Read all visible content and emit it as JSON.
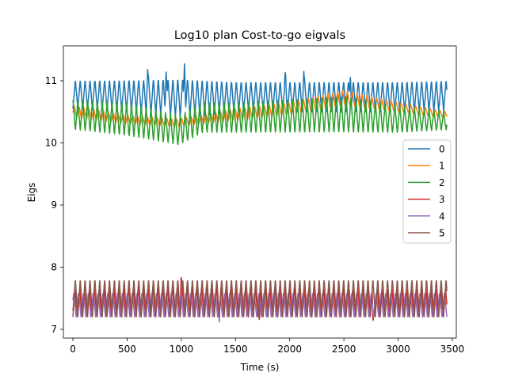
{
  "chart_data": {
    "type": "line",
    "title": "Log10 plan Cost-to-go eigvals",
    "xlabel": "Time (s)",
    "ylabel": "Eigs",
    "xlim": [
      -88,
      3537
    ],
    "ylim": [
      6.86,
      11.56
    ],
    "xticks": [
      0,
      500,
      1000,
      1500,
      2000,
      2500,
      3000,
      3500
    ],
    "yticks": [
      7,
      8,
      9,
      10,
      11
    ],
    "grid": false,
    "legend_position": "center-right",
    "series": [
      {
        "name": "0",
        "color": "#1f77b4",
        "lo": [
          [
            0,
            10.55
          ],
          [
            500,
            10.5
          ],
          [
            1000,
            10.4
          ],
          [
            1500,
            10.5
          ],
          [
            2000,
            10.5
          ],
          [
            2500,
            10.5
          ],
          [
            3000,
            10.5
          ],
          [
            3450,
            10.5
          ]
        ],
        "hi": [
          [
            0,
            11.02
          ],
          [
            500,
            11.03
          ],
          [
            1000,
            11.05
          ],
          [
            1500,
            11.0
          ],
          [
            2000,
            11.0
          ],
          [
            2500,
            11.0
          ],
          [
            3000,
            11.0
          ],
          [
            3450,
            11.02
          ]
        ],
        "period": 45,
        "phase": 0,
        "spikes": [
          [
            1030,
            11.35
          ],
          [
            860,
            11.2
          ],
          [
            690,
            11.18
          ],
          [
            1960,
            11.15
          ],
          [
            2130,
            11.15
          ],
          [
            2560,
            11.1
          ]
        ]
      },
      {
        "name": "1",
        "color": "#ff7f0e",
        "lo": [
          [
            0,
            10.4
          ],
          [
            500,
            10.3
          ],
          [
            950,
            10.25
          ],
          [
            1200,
            10.3
          ],
          [
            1500,
            10.35
          ],
          [
            2000,
            10.45
          ],
          [
            2500,
            10.6
          ],
          [
            3000,
            10.5
          ],
          [
            3450,
            10.4
          ]
        ],
        "hi": [
          [
            0,
            10.6
          ],
          [
            500,
            10.45
          ],
          [
            950,
            10.38
          ],
          [
            1200,
            10.45
          ],
          [
            1500,
            10.55
          ],
          [
            2000,
            10.65
          ],
          [
            2500,
            10.85
          ],
          [
            3000,
            10.65
          ],
          [
            3450,
            10.5
          ]
        ],
        "period": 45,
        "phase": 10,
        "spikes": []
      },
      {
        "name": "2",
        "color": "#2ca02c",
        "lo": [
          [
            0,
            10.2
          ],
          [
            500,
            10.1
          ],
          [
            980,
            9.95
          ],
          [
            1200,
            10.15
          ],
          [
            1500,
            10.15
          ],
          [
            2000,
            10.15
          ],
          [
            2500,
            10.15
          ],
          [
            3000,
            10.15
          ],
          [
            3450,
            10.2
          ]
        ],
        "hi": [
          [
            0,
            10.7
          ],
          [
            500,
            10.65
          ],
          [
            980,
            10.45
          ],
          [
            1200,
            10.65
          ],
          [
            1500,
            10.65
          ],
          [
            2000,
            10.7
          ],
          [
            2500,
            10.75
          ],
          [
            3000,
            10.6
          ],
          [
            3450,
            10.5
          ]
        ],
        "period": 45,
        "phase": 22,
        "spikes": []
      },
      {
        "name": "3",
        "color": "#d62728",
        "lo": [
          [
            0,
            7.2
          ],
          [
            3450,
            7.2
          ]
        ],
        "hi": [
          [
            0,
            7.65
          ],
          [
            1000,
            7.7
          ],
          [
            3450,
            7.65
          ]
        ],
        "period": 45,
        "phase": 5,
        "spikes": [
          [
            1000,
            7.87
          ],
          [
            1720,
            7.12
          ],
          [
            2770,
            7.1
          ]
        ]
      },
      {
        "name": "4",
        "color": "#9467bd",
        "lo": [
          [
            0,
            7.2
          ],
          [
            3450,
            7.2
          ]
        ],
        "hi": [
          [
            0,
            7.6
          ],
          [
            3450,
            7.6
          ]
        ],
        "period": 45,
        "phase": 15,
        "spikes": [
          [
            1350,
            7.12
          ]
        ]
      },
      {
        "name": "5",
        "color": "#8c564b",
        "lo": [
          [
            0,
            7.2
          ],
          [
            3450,
            7.2
          ]
        ],
        "hi": [
          [
            0,
            7.82
          ],
          [
            3450,
            7.82
          ]
        ],
        "period": 45,
        "phase": 0,
        "spikes": []
      }
    ]
  }
}
